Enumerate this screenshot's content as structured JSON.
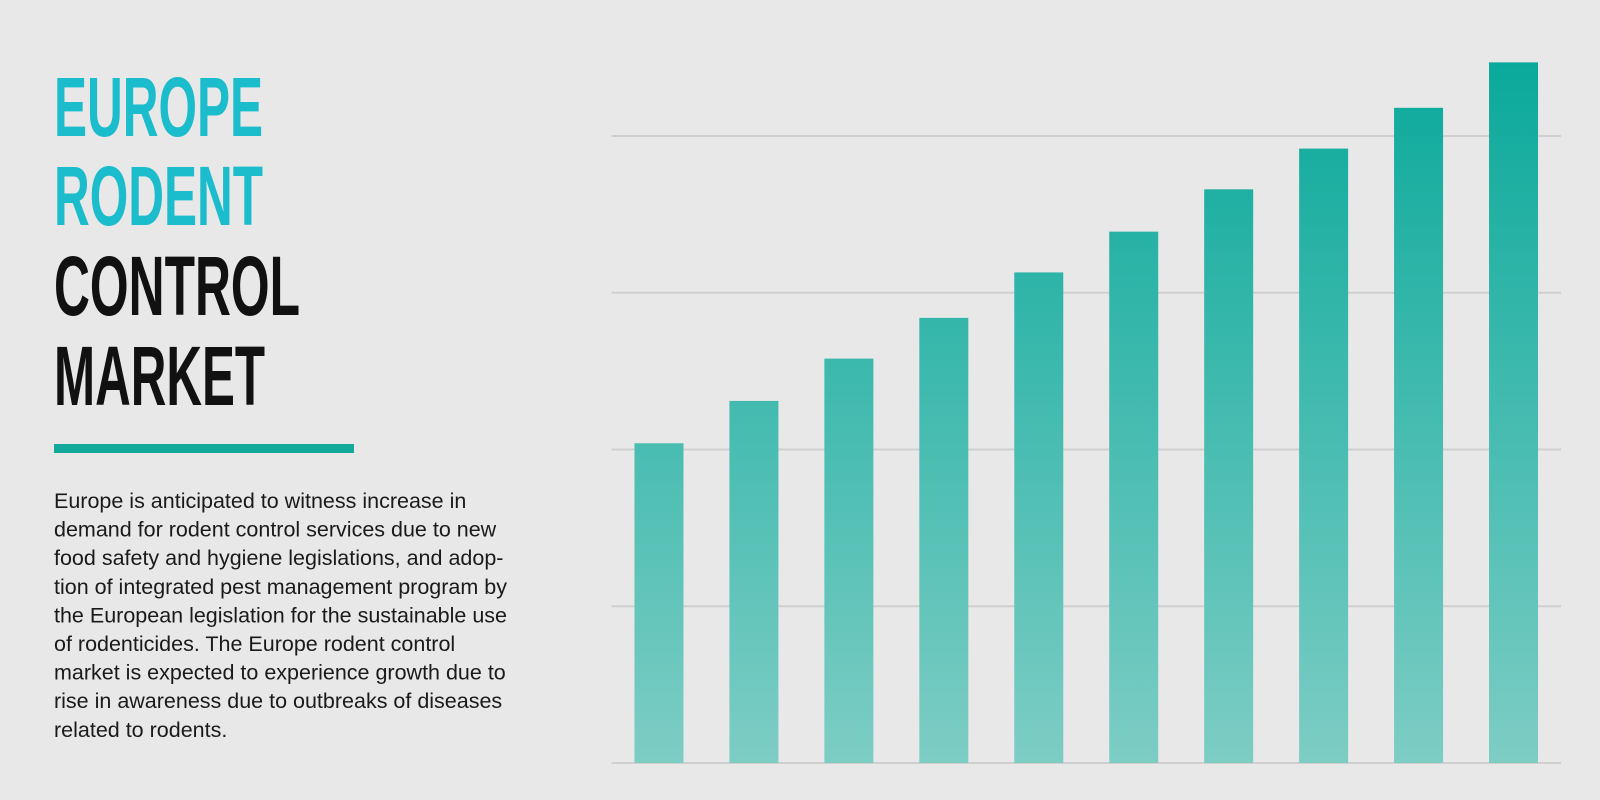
{
  "title_lines": [
    {
      "text": "EUROPE",
      "color": "#1bbccb"
    },
    {
      "text": "RODENT",
      "color": "#1bbccb"
    },
    {
      "text": "CONTROL",
      "color": "#111111"
    },
    {
      "text": "MARKET",
      "color": "#111111"
    }
  ],
  "description_lines": [
    "Europe is anticipated to witness increase in",
    "demand for rodent control services due to new",
    "food safety and hygiene legislations, and adop-",
    "tion of integrated pest management program by",
    "the European legislation for the sustainable use",
    "of rodenticides. The Europe rodent control",
    "market is expected to experience growth due to",
    "rise in awareness due to outbreaks of diseases",
    "related to rodents."
  ],
  "chart_data": {
    "type": "bar",
    "categories": [
      null,
      null,
      null,
      null,
      null,
      null,
      null,
      null,
      null,
      null
    ],
    "values": [
      2.04,
      2.31,
      2.58,
      2.84,
      3.13,
      3.39,
      3.66,
      3.92,
      4.18,
      4.47
    ],
    "color": [
      "#0aa99b",
      "#7dcdc4"
    ],
    "ylim": [
      0,
      4.6
    ],
    "yticks": [
      0,
      1,
      2,
      3,
      4
    ],
    "grid": true
  }
}
